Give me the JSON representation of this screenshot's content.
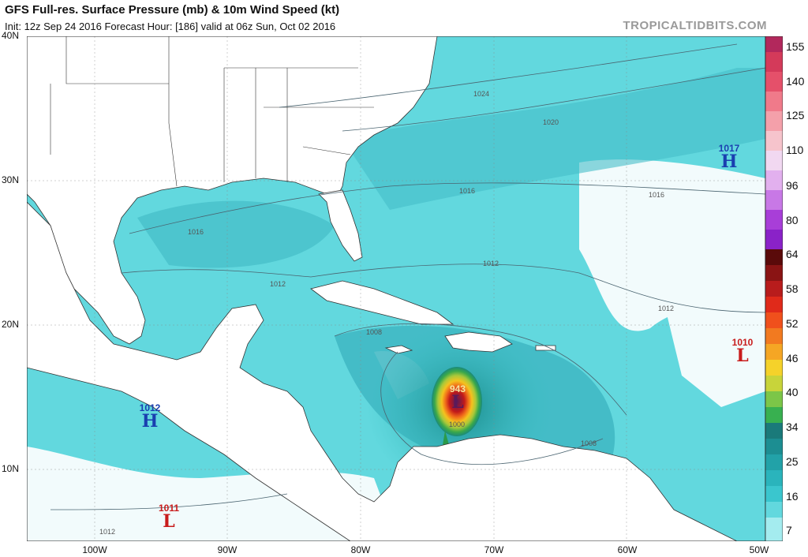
{
  "header": {
    "title": "GFS Full-res. Surface Pressure (mb) & 10m Wind Speed (kt)",
    "subtitle": "Init: 12z Sep 24 2016   Forecast Hour: [186]   valid at 06z Sun, Oct 02 2016",
    "brand": "TROPICALTIDBITS.COM"
  },
  "axes": {
    "lat_labels": [
      "40N",
      "30N",
      "20N",
      "10N"
    ],
    "lon_labels": [
      "100W",
      "90W",
      "80W",
      "70W",
      "60W",
      "50W"
    ]
  },
  "colorbar": {
    "labels": [
      "155",
      "140",
      "125",
      "110",
      "96",
      "80",
      "64",
      "58",
      "52",
      "46",
      "40",
      "34",
      "25",
      "16",
      "7"
    ]
  },
  "pressure_centers": [
    {
      "type": "H",
      "value": "1017"
    },
    {
      "type": "L",
      "value": "1010"
    },
    {
      "type": "H",
      "value": "1012"
    },
    {
      "type": "L",
      "value": "1011"
    },
    {
      "type": "L",
      "value": "943"
    }
  ],
  "isobar_labels": [
    "1024",
    "1020",
    "1016",
    "1016",
    "1016",
    "1012",
    "1012",
    "1012",
    "1008",
    "1008",
    "1000",
    "1012"
  ]
}
